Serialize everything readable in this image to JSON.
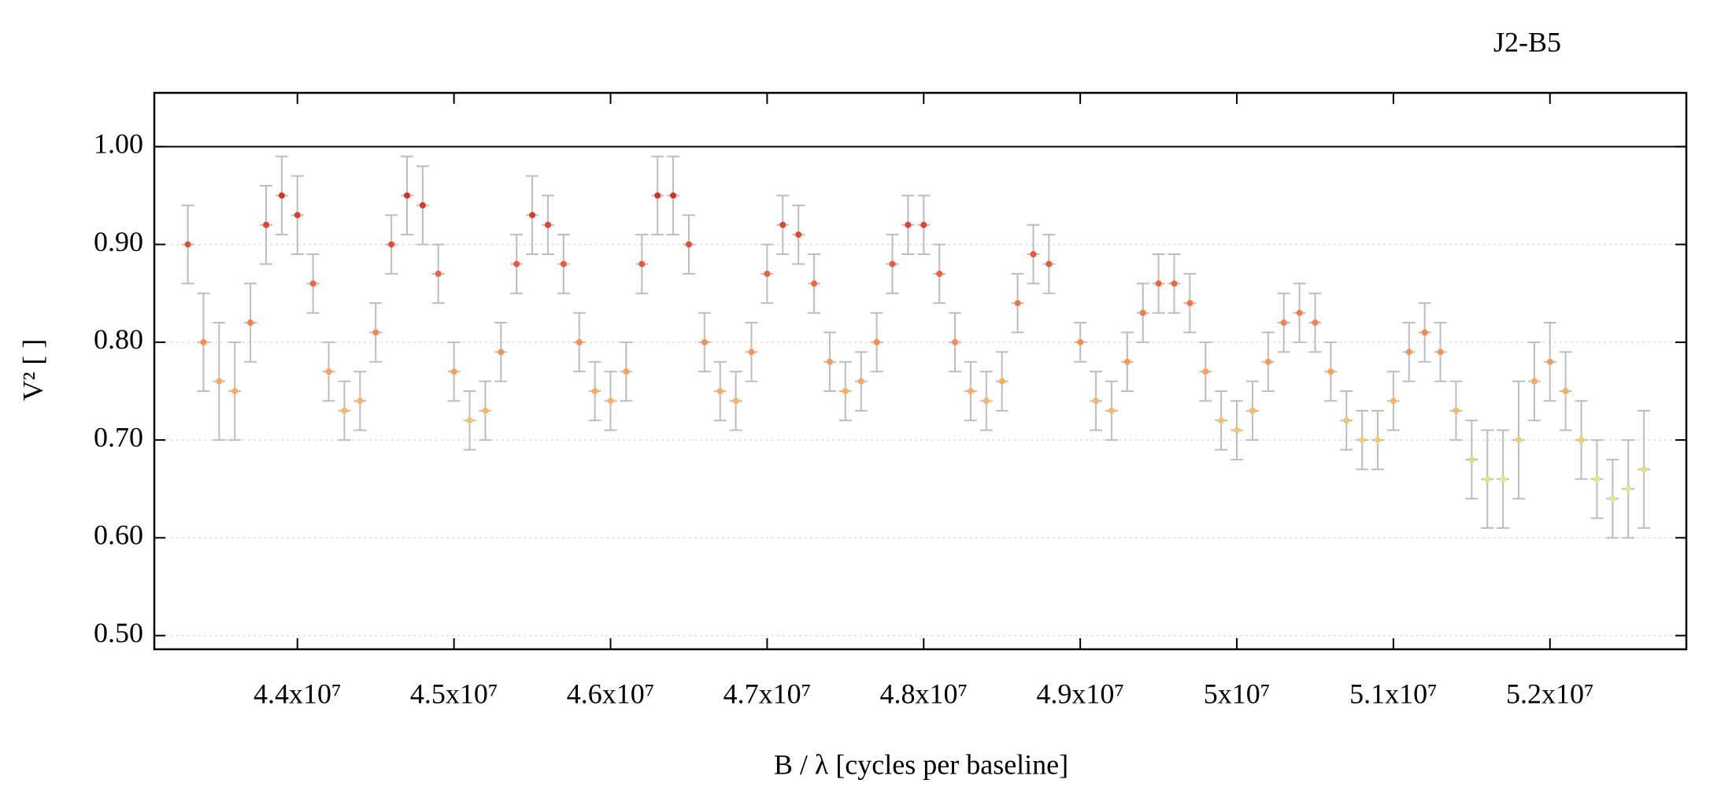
{
  "chart_data": {
    "type": "scatter",
    "title": "J2-B5",
    "xlabel": "B / λ [cycles per baseline]",
    "ylabel": "V² [ ]",
    "xlim": [
      43086000,
      52871000
    ],
    "ylim": [
      0.486,
      1.055
    ],
    "xticks": [
      {
        "value": 44000000,
        "label": "4.4x10⁷"
      },
      {
        "value": 45000000,
        "label": "4.5x10⁷"
      },
      {
        "value": 46000000,
        "label": "4.6x10⁷"
      },
      {
        "value": 47000000,
        "label": "4.7x10⁷"
      },
      {
        "value": 48000000,
        "label": "4.8x10⁷"
      },
      {
        "value": 49000000,
        "label": "4.9x10⁷"
      },
      {
        "value": 50000000,
        "label": "5x10⁷"
      },
      {
        "value": 51000000,
        "label": "5.1x10⁷"
      },
      {
        "value": 52000000,
        "label": "5.2x10⁷"
      }
    ],
    "yticks": [
      {
        "value": 0.5,
        "label": "0.50"
      },
      {
        "value": 0.6,
        "label": "0.60"
      },
      {
        "value": 0.7,
        "label": "0.70"
      },
      {
        "value": 0.8,
        "label": "0.80"
      },
      {
        "value": 0.9,
        "label": "0.90"
      },
      {
        "value": 1,
        "label": "1.00"
      }
    ],
    "grid": true,
    "hline": 1,
    "error_color": "#bdbdbd",
    "colorscale": [
      [
        0.55,
        "#a6d9e8"
      ],
      [
        0.65,
        "#d9ef8b"
      ],
      [
        0.75,
        "#fdae61"
      ],
      [
        0.85,
        "#f46d43"
      ],
      [
        0.95,
        "#d73027"
      ]
    ],
    "x_error": 40000,
    "x": [
      43300000,
      43400000,
      43500000,
      43600000,
      43700000,
      43800000,
      43900000,
      44000000,
      44100000,
      44200000,
      44300000,
      44400000,
      44500000,
      44600000,
      44700000,
      44800000,
      44900000,
      45000000,
      45100000,
      45200000,
      45300000,
      45400000,
      45500000,
      45600000,
      45700000,
      45800000,
      45900000,
      46000000,
      46100000,
      46200000,
      46300000,
      46400000,
      46500000,
      46600000,
      46700000,
      46800000,
      46900000,
      47000000,
      47100000,
      47200000,
      47300000,
      47400000,
      47500000,
      47600000,
      47700000,
      47800000,
      47900000,
      48000000,
      48100000,
      48200000,
      48300000,
      48400000,
      48500000,
      48600000,
      48700000,
      48800000,
      49000000,
      49100000,
      49200000,
      49300000,
      49400000,
      49500000,
      49600000,
      49700000,
      49800000,
      49900000,
      50000000,
      50100000,
      50200000,
      50300000,
      50400000,
      50500000,
      50600000,
      50700000,
      50800000,
      50900000,
      51000000,
      51100000,
      51200000,
      51300000,
      51400000,
      51500000,
      51600000,
      51700000,
      51800000,
      51900000,
      52000000,
      52100000,
      52200000,
      52300000,
      52400000,
      52500000,
      52600000
    ],
    "values": [
      0.9,
      0.8,
      0.76,
      0.75,
      0.82,
      0.92,
      0.95,
      0.93,
      0.86,
      0.77,
      0.73,
      0.74,
      0.81,
      0.9,
      0.95,
      0.94,
      0.87,
      0.77,
      0.72,
      0.73,
      0.79,
      0.88,
      0.93,
      0.92,
      0.88,
      0.8,
      0.75,
      0.74,
      0.77,
      0.88,
      0.95,
      0.95,
      0.9,
      0.8,
      0.75,
      0.74,
      0.79,
      0.87,
      0.92,
      0.91,
      0.86,
      0.78,
      0.75,
      0.76,
      0.8,
      0.88,
      0.92,
      0.92,
      0.87,
      0.8,
      0.75,
      0.74,
      0.76,
      0.84,
      0.89,
      0.88,
      0.8,
      0.74,
      0.73,
      0.78,
      0.83,
      0.86,
      0.86,
      0.84,
      0.77,
      0.72,
      0.71,
      0.73,
      0.78,
      0.82,
      0.83,
      0.82,
      0.77,
      0.72,
      0.7,
      0.7,
      0.74,
      0.79,
      0.81,
      0.79,
      0.73,
      0.68,
      0.66,
      0.66,
      0.7,
      0.76,
      0.78,
      0.75,
      0.7,
      0.66,
      0.64,
      0.65,
      0.67
    ],
    "errors": [
      0.04,
      0.05,
      0.06,
      0.05,
      0.04,
      0.04,
      0.04,
      0.04,
      0.03,
      0.03,
      0.03,
      0.03,
      0.03,
      0.03,
      0.04,
      0.04,
      0.03,
      0.03,
      0.03,
      0.03,
      0.03,
      0.03,
      0.04,
      0.03,
      0.03,
      0.03,
      0.03,
      0.03,
      0.03,
      0.03,
      0.04,
      0.04,
      0.03,
      0.03,
      0.03,
      0.03,
      0.03,
      0.03,
      0.03,
      0.03,
      0.03,
      0.03,
      0.03,
      0.03,
      0.03,
      0.03,
      0.03,
      0.03,
      0.03,
      0.03,
      0.03,
      0.03,
      0.03,
      0.03,
      0.03,
      0.03,
      0.02,
      0.03,
      0.03,
      0.03,
      0.03,
      0.03,
      0.03,
      0.03,
      0.03,
      0.03,
      0.03,
      0.03,
      0.03,
      0.03,
      0.03,
      0.03,
      0.03,
      0.03,
      0.03,
      0.03,
      0.03,
      0.03,
      0.03,
      0.03,
      0.03,
      0.04,
      0.05,
      0.05,
      0.06,
      0.04,
      0.04,
      0.04,
      0.04,
      0.04,
      0.04,
      0.05,
      0.06
    ]
  }
}
